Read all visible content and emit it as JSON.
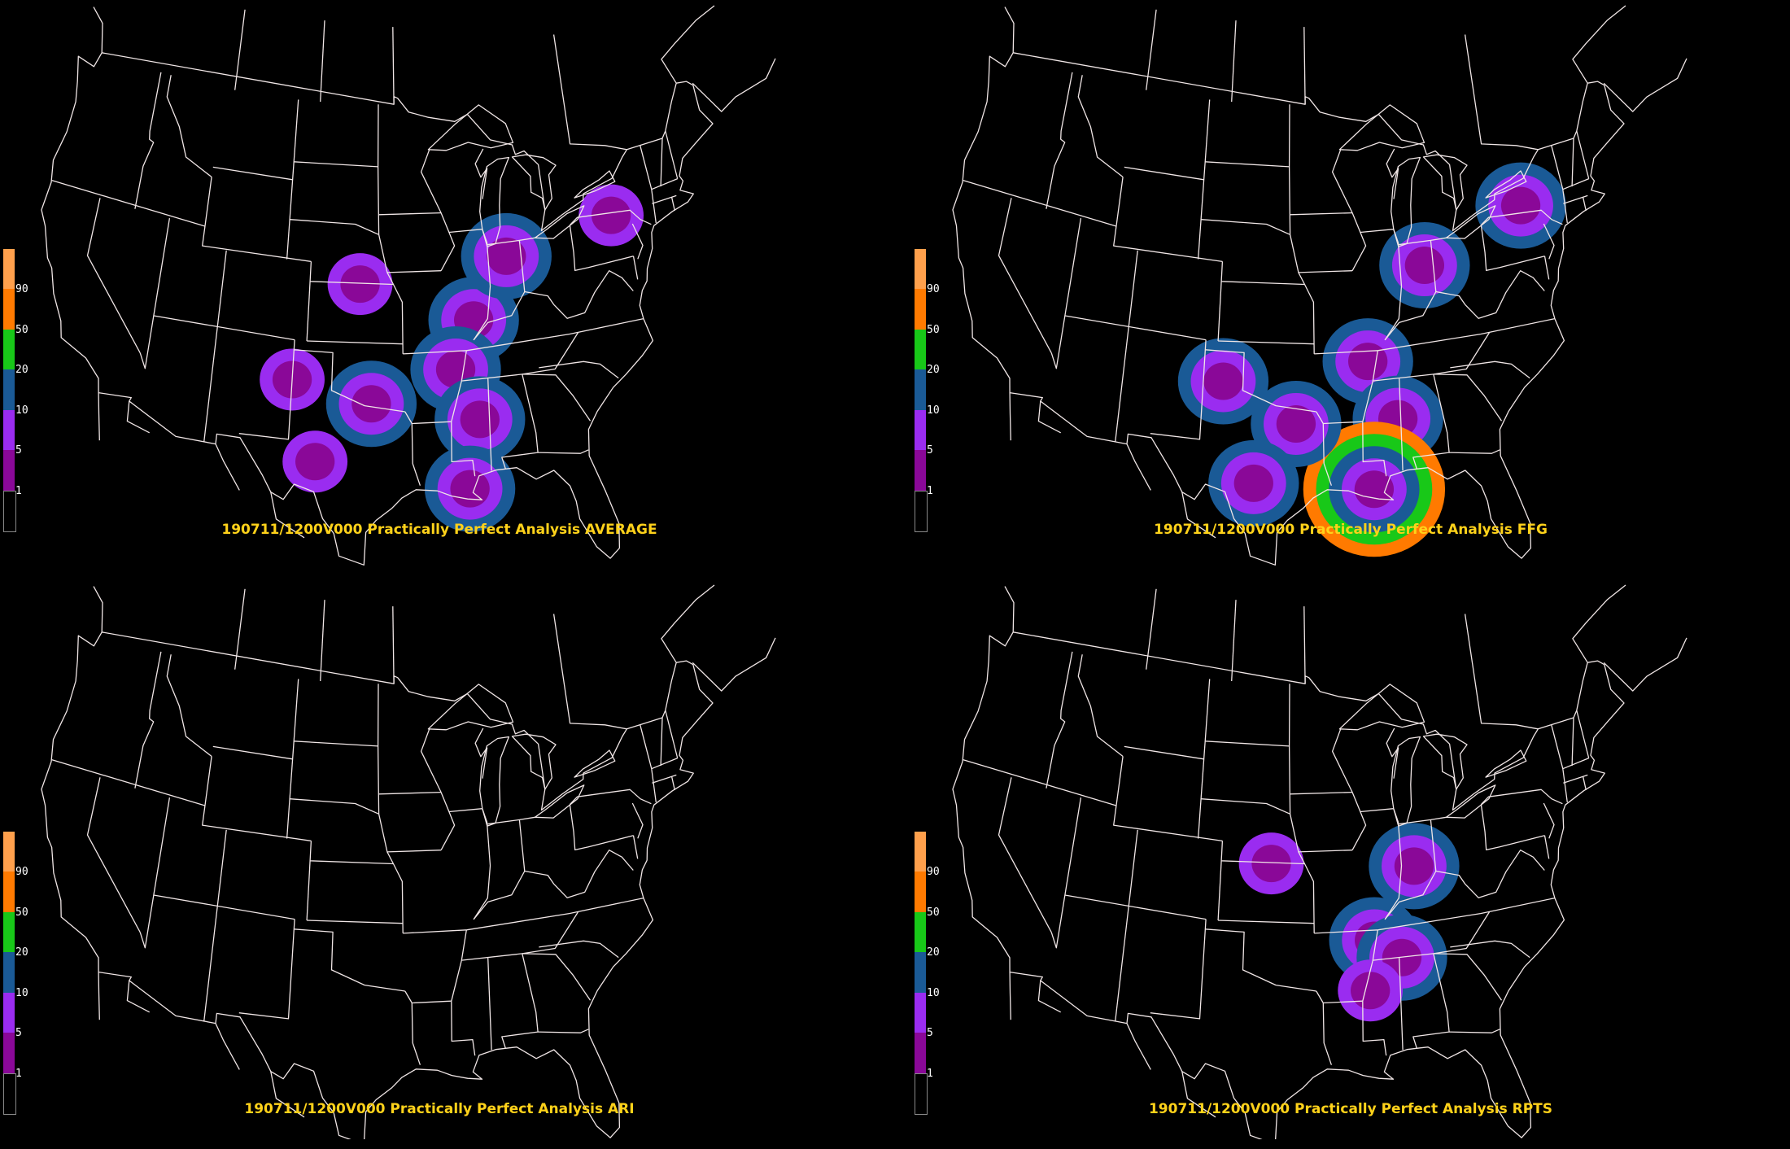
{
  "legend": {
    "labels": [
      "90",
      "50",
      "20",
      "10",
      "5",
      "1"
    ],
    "colors": [
      "#ffa04c",
      "#ff7a00",
      "#18c818",
      "#1a5a96",
      "#9a2cf0",
      "#8a0898",
      "#000000"
    ]
  },
  "panels": [
    {
      "caption": "190711/1200V000 Practically Perfect Analysis AVERAGE",
      "blobs": [
        {
          "lon": -89.0,
          "lat": 38.0,
          "level": 3
        },
        {
          "lon": -86.0,
          "lat": 41.0,
          "level": 3
        },
        {
          "lon": -90.6,
          "lat": 35.6,
          "level": 3
        },
        {
          "lon": -89.0,
          "lat": 33.0,
          "level": 3
        },
        {
          "lon": -90.0,
          "lat": 29.6,
          "level": 3
        },
        {
          "lon": -98.0,
          "lat": 40.0,
          "level": 2
        },
        {
          "lon": -103.0,
          "lat": 35.0,
          "level": 2
        },
        {
          "lon": -97.0,
          "lat": 34.0,
          "level": 3
        },
        {
          "lon": -101.0,
          "lat": 31.0,
          "level": 2
        },
        {
          "lon": -77.0,
          "lat": 42.0,
          "level": 2
        }
      ]
    },
    {
      "caption": "190711/1200V000 Practically Perfect Analysis FFG",
      "blobs": [
        {
          "lon": -85.5,
          "lat": 40.5,
          "level": 3
        },
        {
          "lon": -90.5,
          "lat": 36.0,
          "level": 3
        },
        {
          "lon": -88.5,
          "lat": 33.0,
          "level": 3
        },
        {
          "lon": -90.5,
          "lat": 29.6,
          "level": 5
        },
        {
          "lon": -101.5,
          "lat": 35.0,
          "level": 3
        },
        {
          "lon": -96.0,
          "lat": 33.0,
          "level": 3
        },
        {
          "lon": -99.0,
          "lat": 30.0,
          "level": 3
        },
        {
          "lon": -77.0,
          "lat": 42.5,
          "level": 3
        }
      ]
    },
    {
      "caption": "190711/1200V000 Practically Perfect Analysis ARI",
      "blobs": []
    },
    {
      "caption": "190711/1200V000 Practically Perfect Analysis RPTS",
      "blobs": [
        {
          "lon": -86.5,
          "lat": 39.5,
          "level": 3
        },
        {
          "lon": -90.0,
          "lat": 36.0,
          "level": 3
        },
        {
          "lon": -88.0,
          "lat": 35.0,
          "level": 3
        },
        {
          "lon": -90.5,
          "lat": 33.5,
          "level": 2
        },
        {
          "lon": -98.0,
          "lat": 40.0,
          "level": 2
        }
      ]
    }
  ]
}
